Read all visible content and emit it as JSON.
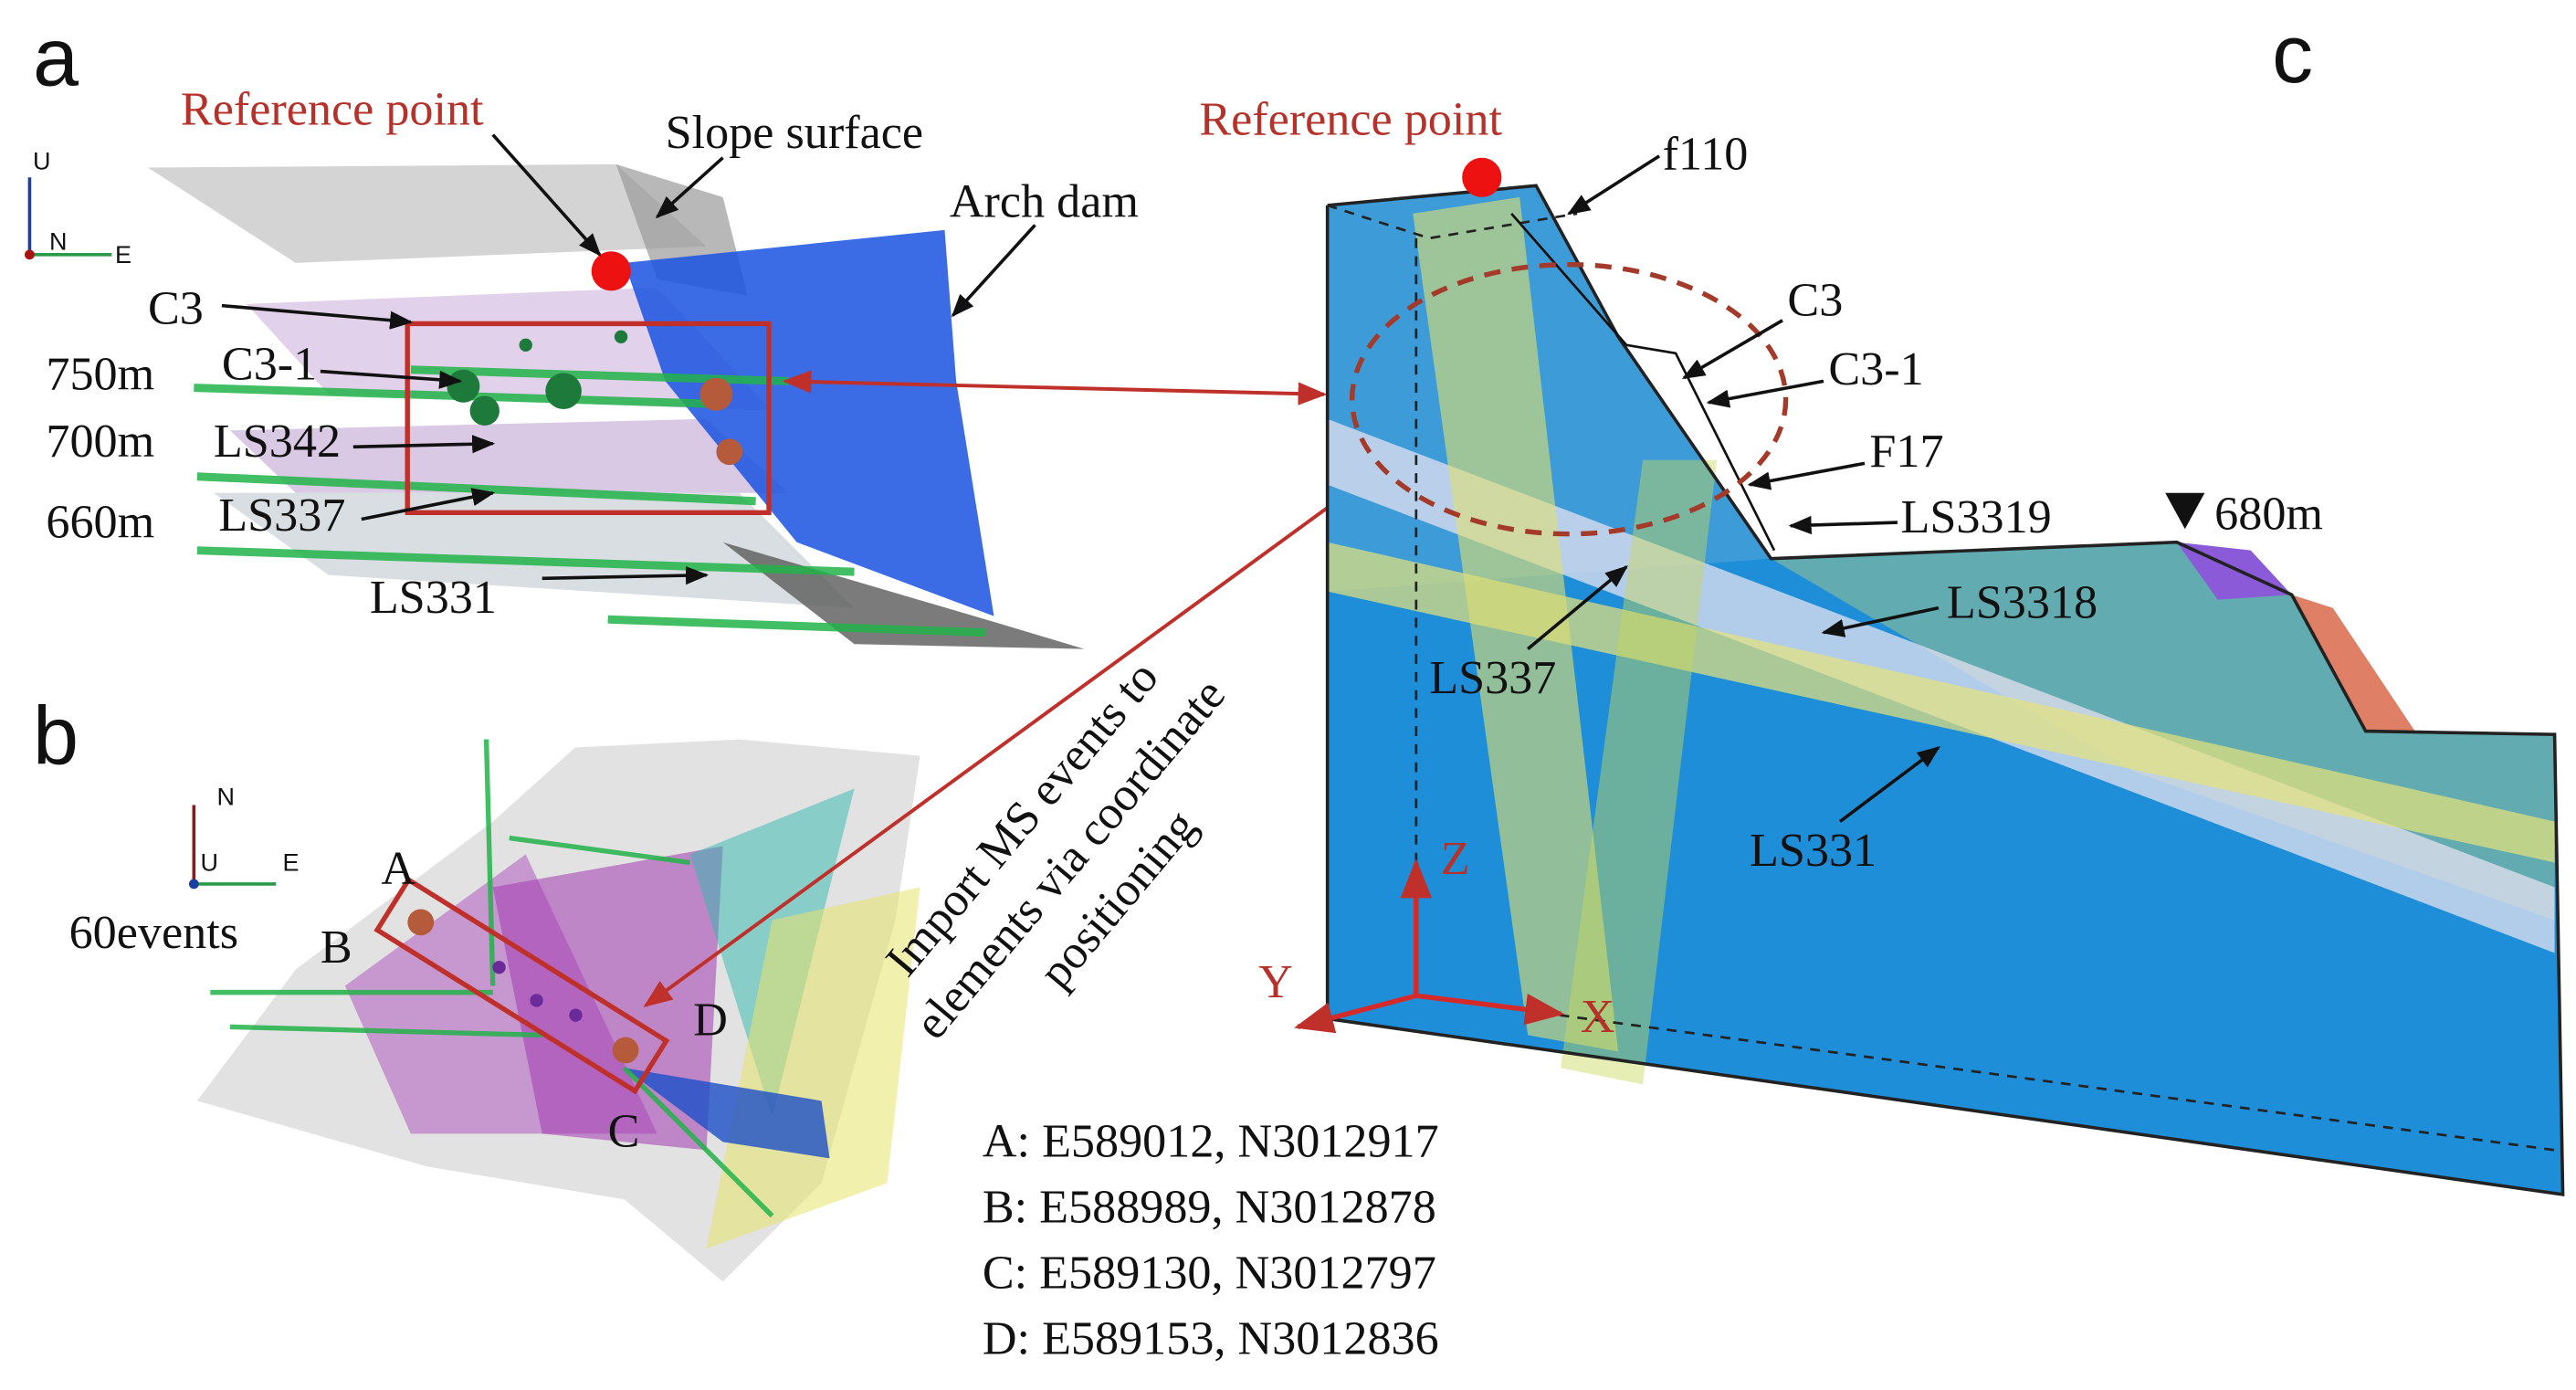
{
  "panel_a": {
    "label": "a",
    "reference_point": "Reference point",
    "slope_surface": "Slope surface",
    "arch_dam": "Arch dam",
    "layers": [
      "C3",
      "C3-1",
      "LS342",
      "LS337",
      "LS331"
    ],
    "elevations": [
      "750m",
      "700m",
      "660m"
    ],
    "axis_labels": [
      "U",
      "N",
      "E"
    ]
  },
  "panel_b": {
    "label": "b",
    "events": "60events",
    "corners": [
      "A",
      "B",
      "C",
      "D"
    ],
    "axis_labels": [
      "N",
      "U",
      "E"
    ]
  },
  "import_note": [
    "Import MS events to",
    "elements via coordinate",
    "positioning"
  ],
  "coordinates": [
    "A: E589012, N3012917",
    "B: E588989, N3012878",
    "C: E589130, N3012797",
    "D: E589153, N3012836"
  ],
  "panel_c": {
    "label": "c",
    "reference_point": "Reference point",
    "layers": [
      "f110",
      "C3",
      "C3-1",
      "F17",
      "LS3319",
      "LS3318",
      "LS337",
      "LS331"
    ],
    "elevation": "680m",
    "axis_labels": [
      "Z",
      "Y",
      "X"
    ]
  }
}
